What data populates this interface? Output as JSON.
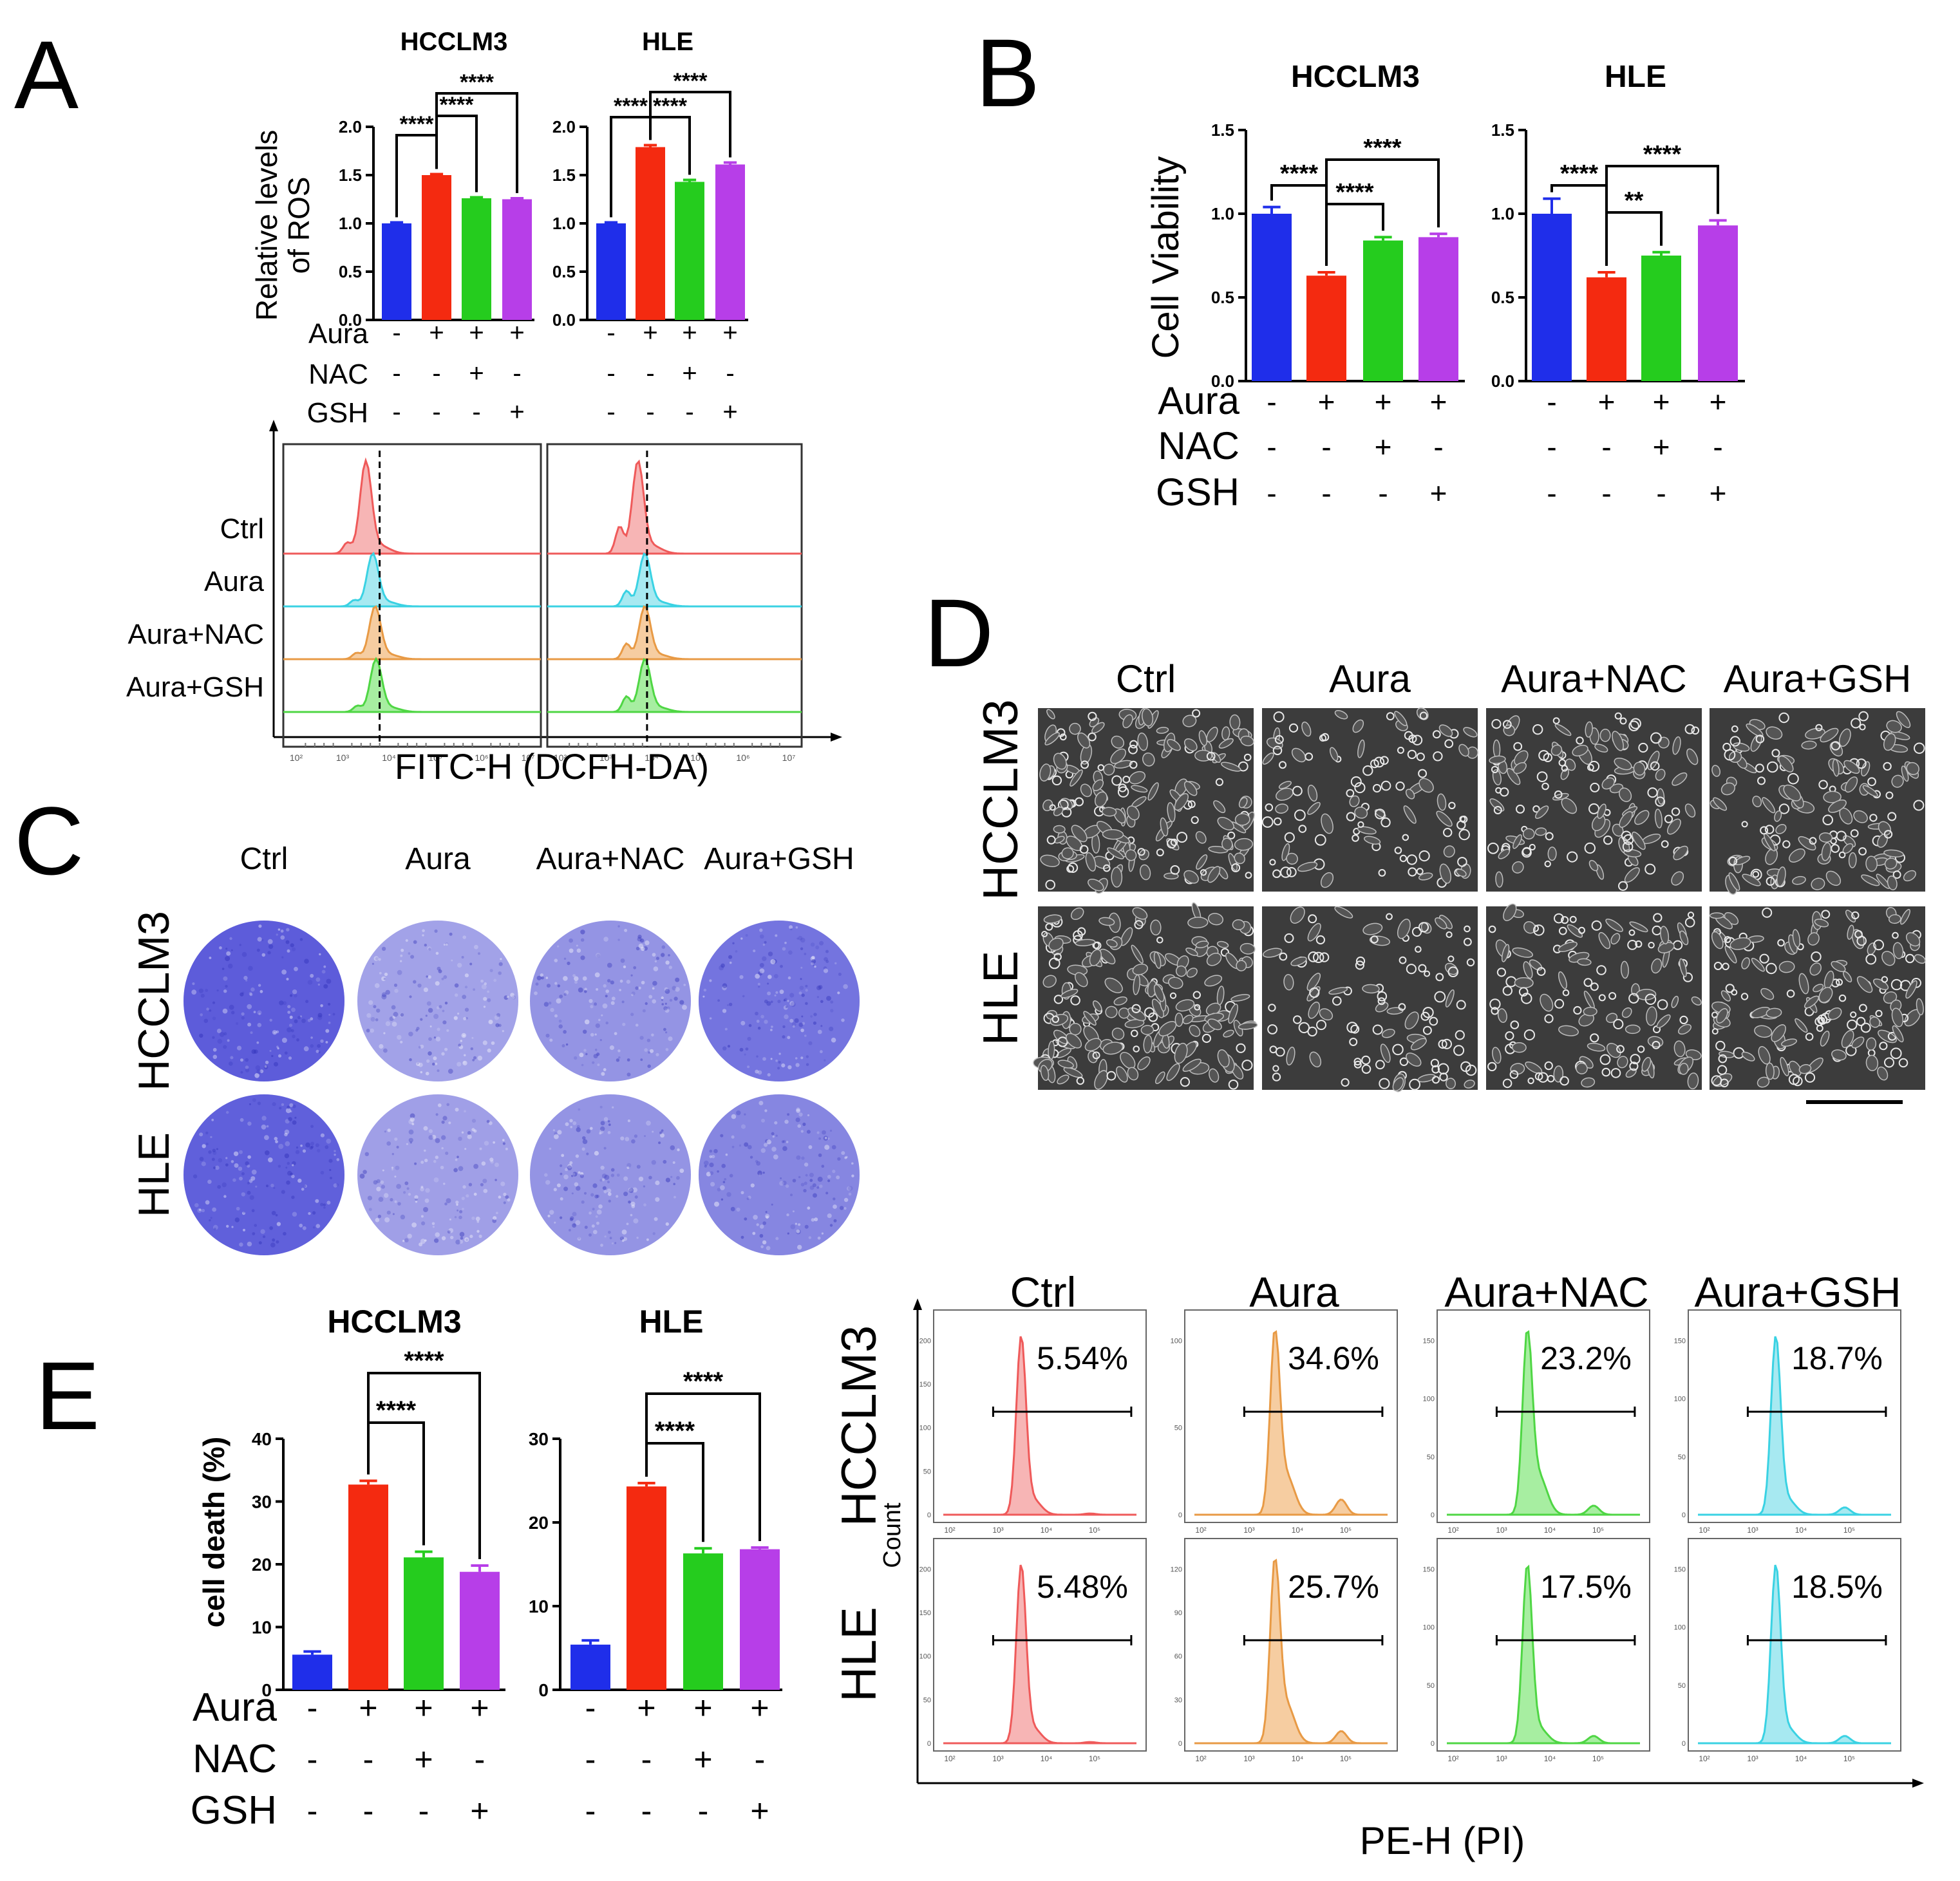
{
  "colors": {
    "blue": "#1f2eea",
    "red": "#f42a10",
    "green": "#25cc1e",
    "purple": "#b73ee8",
    "hist_red": "#ef5a5a",
    "hist_red_fill": "#f7b5b5",
    "hist_cyan": "#3ad2e3",
    "hist_cyan_fill": "#a7e9f1",
    "hist_orange": "#e89a45",
    "hist_orange_fill": "#f6cda1",
    "hist_green": "#4fd644",
    "hist_green_fill": "#a7eea1",
    "crystal": "#4a4bd6",
    "crystal_light": "#c9c8ef"
  },
  "panel_letters": [
    "A",
    "B",
    "C",
    "D",
    "E"
  ],
  "treatments": {
    "rows": [
      "Aura",
      "NAC",
      "GSH"
    ],
    "signs": [
      [
        "-",
        "+",
        "+",
        "+"
      ],
      [
        "-",
        "-",
        "+",
        "-"
      ],
      [
        "-",
        "-",
        "-",
        "+"
      ]
    ]
  },
  "groups": [
    "Ctrl",
    "Aura",
    "Aura+NAC",
    "Aura+GSH"
  ],
  "cell_lines": [
    "HCCLM3",
    "HLE"
  ],
  "chart_data": [
    {
      "panel": "A",
      "type": "bar",
      "ylabel": "Relative levels of ROS",
      "ylabel_lines": [
        "Relative levels",
        "of ROS"
      ],
      "ylim": [
        0,
        2.0
      ],
      "yticks": [
        "0.0",
        "0.5",
        "1.0",
        "1.5",
        "2.0"
      ],
      "charts": [
        {
          "title": "HCCLM3",
          "values": [
            1.0,
            1.5,
            1.26,
            1.25
          ],
          "errors": [
            0.01,
            0.01,
            0.01,
            0.01
          ],
          "brackets": [
            {
              "from": 0,
              "to": 1,
              "label": "****"
            },
            {
              "from": 1,
              "to": 2,
              "label": "****"
            },
            {
              "from": 1,
              "to": 3,
              "label": "****"
            }
          ]
        },
        {
          "title": "HLE",
          "values": [
            1.0,
            1.79,
            1.43,
            1.61
          ],
          "errors": [
            0.01,
            0.02,
            0.02,
            0.02
          ],
          "brackets": [
            {
              "from": 0,
              "to": 1,
              "label": "****"
            },
            {
              "from": 1,
              "to": 2,
              "label": "****"
            },
            {
              "from": 1,
              "to": 3,
              "label": "****"
            }
          ]
        }
      ]
    },
    {
      "panel": "B",
      "type": "bar",
      "ylabel": "Cell Viability",
      "ylim": [
        0,
        1.5
      ],
      "yticks": [
        "0.0",
        "0.5",
        "1.0",
        "1.5"
      ],
      "charts": [
        {
          "title": "HCCLM3",
          "values": [
            1.0,
            0.63,
            0.84,
            0.86
          ],
          "errors": [
            0.04,
            0.02,
            0.02,
            0.02
          ],
          "brackets": [
            {
              "from": 0,
              "to": 1,
              "label": "****"
            },
            {
              "from": 1,
              "to": 2,
              "label": "****"
            },
            {
              "from": 1,
              "to": 3,
              "label": "****"
            }
          ]
        },
        {
          "title": "HLE",
          "values": [
            1.0,
            0.62,
            0.75,
            0.93
          ],
          "errors": [
            0.09,
            0.03,
            0.02,
            0.03
          ],
          "brackets": [
            {
              "from": 0,
              "to": 1,
              "label": "****"
            },
            {
              "from": 1,
              "to": 2,
              "label": "**"
            },
            {
              "from": 1,
              "to": 3,
              "label": "****"
            }
          ]
        }
      ]
    },
    {
      "panel": "E",
      "type": "bar",
      "ylabel": "cell death (%)",
      "charts": [
        {
          "title": "HCCLM3",
          "ylim": [
            0,
            40
          ],
          "yticks": [
            "0",
            "10",
            "20",
            "30",
            "40"
          ],
          "values": [
            5.6,
            32.7,
            21.1,
            18.8
          ],
          "errors": [
            0.5,
            0.6,
            0.9,
            1.0
          ],
          "brackets": [
            {
              "from": 1,
              "to": 2,
              "label": "****"
            },
            {
              "from": 1,
              "to": 3,
              "label": "****"
            }
          ]
        },
        {
          "title": "HLE",
          "ylim": [
            0,
            30
          ],
          "yticks": [
            "0",
            "10",
            "20",
            "30"
          ],
          "values": [
            5.4,
            24.3,
            16.3,
            16.8
          ],
          "errors": [
            0.5,
            0.4,
            0.6,
            0.2
          ],
          "brackets": [
            {
              "from": 1,
              "to": 2,
              "label": "****"
            },
            {
              "from": 1,
              "to": 3,
              "label": "****"
            }
          ]
        }
      ]
    },
    {
      "panel": "A-flow",
      "type": "histogram",
      "xlabel": "FITC-H (DCFH-DA)",
      "rows": [
        "Ctrl",
        "Aura",
        "Aura+NAC",
        "Aura+GSH"
      ],
      "row_colors": [
        "hist_red",
        "hist_cyan",
        "hist_orange",
        "hist_green"
      ],
      "row_fills": [
        "hist_red_fill",
        "hist_cyan_fill",
        "hist_orange_fill",
        "hist_green_fill"
      ],
      "xticks": [
        "10²",
        "10³",
        "10⁴",
        "10⁵",
        "10⁶",
        "10⁷"
      ],
      "charts": [
        {
          "cell_line": "HCCLM3",
          "peaks_log": [
            3.5,
            3.65,
            3.7,
            3.72
          ],
          "marker_log": 3.8
        },
        {
          "cell_line": "HLE",
          "peaks_log": [
            3.7,
            3.85,
            3.85,
            3.85
          ],
          "marker_log": 3.9
        }
      ]
    },
    {
      "panel": "E-flow",
      "type": "histogram",
      "xlabel": "PE-H (PI)",
      "ylabel": "Count",
      "xticks": [
        "10²",
        "10³",
        "10⁴",
        "10⁵"
      ],
      "rows": [
        {
          "cell_line": "HCCLM3",
          "cells": [
            {
              "percent": "5.54%",
              "ymax": 200,
              "yticks": [
                "0",
                "50",
                "100",
                "150",
                "200"
              ],
              "peak_log": 3.25,
              "tail": 0.02,
              "color": "hist_red",
              "fill": "hist_red_fill"
            },
            {
              "percent": "34.6%",
              "ymax": 100,
              "yticks": [
                "0",
                "50",
                "100"
              ],
              "peak_log": 3.3,
              "tail": 0.25,
              "color": "hist_orange",
              "fill": "hist_orange_fill"
            },
            {
              "percent": "23.2%",
              "ymax": 150,
              "yticks": [
                "0",
                "50",
                "100",
                "150"
              ],
              "peak_log": 3.3,
              "tail": 0.15,
              "color": "hist_green",
              "fill": "hist_green_fill"
            },
            {
              "percent": "18.7%",
              "ymax": 150,
              "yticks": [
                "0",
                "50",
                "100",
                "150"
              ],
              "peak_log": 3.25,
              "tail": 0.12,
              "color": "hist_cyan",
              "fill": "hist_cyan_fill"
            }
          ]
        },
        {
          "cell_line": "HLE",
          "cells": [
            {
              "percent": "5.48%",
              "ymax": 200,
              "yticks": [
                "0",
                "50",
                "100",
                "150",
                "200"
              ],
              "peak_log": 3.25,
              "tail": 0.02,
              "color": "hist_red",
              "fill": "hist_red_fill"
            },
            {
              "percent": "25.7%",
              "ymax": 120,
              "yticks": [
                "0",
                "30",
                "60",
                "90",
                "120"
              ],
              "peak_log": 3.3,
              "tail": 0.2,
              "color": "hist_orange",
              "fill": "hist_orange_fill"
            },
            {
              "percent": "17.5%",
              "ymax": 150,
              "yticks": [
                "0",
                "50",
                "100",
                "150"
              ],
              "peak_log": 3.3,
              "tail": 0.12,
              "color": "hist_green",
              "fill": "hist_green_fill"
            },
            {
              "percent": "18.5%",
              "ymax": 150,
              "yticks": [
                "0",
                "50",
                "100",
                "150"
              ],
              "peak_log": 3.25,
              "tail": 0.12,
              "color": "hist_cyan",
              "fill": "hist_cyan_fill"
            }
          ]
        }
      ]
    },
    {
      "panel": "C",
      "type": "image-grid",
      "description": "crystal violet colony formation wells",
      "rows": [
        "HCCLM3",
        "HLE"
      ],
      "cols": [
        "Ctrl",
        "Aura",
        "Aura+NAC",
        "Aura+GSH"
      ],
      "stain_density": [
        [
          0.95,
          0.2,
          0.35,
          0.7
        ],
        [
          0.9,
          0.22,
          0.35,
          0.5
        ]
      ]
    },
    {
      "panel": "D",
      "type": "image-grid",
      "description": "phase-contrast micrographs",
      "rows": [
        "HCCLM3",
        "HLE"
      ],
      "cols": [
        "Ctrl",
        "Aura",
        "Aura+NAC",
        "Aura+GSH"
      ],
      "cell_density": [
        [
          0.9,
          0.45,
          0.6,
          0.65
        ],
        [
          0.95,
          0.45,
          0.6,
          0.75
        ]
      ]
    }
  ]
}
